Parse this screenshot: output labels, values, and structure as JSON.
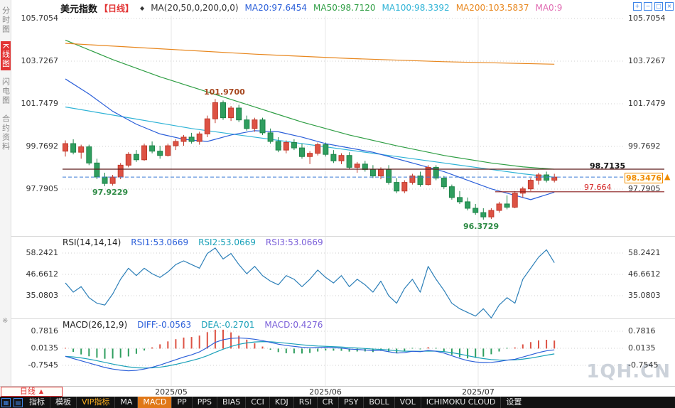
{
  "header": {
    "symbol": "美元指数",
    "period_tag": "【日线】",
    "ma_label": "MA(20,50,0,200,0,0)",
    "ma_values": [
      {
        "text": "MA20:97.6454",
        "color": "#2b5fd9"
      },
      {
        "text": "MA50:98.7120",
        "color": "#2f9e44"
      },
      {
        "text": "MA100:98.3392",
        "color": "#2fb3d6"
      },
      {
        "text": "MA200:103.5837",
        "color": "#e8871e"
      },
      {
        "text": "MA0:9",
        "color": "#e06bb2"
      }
    ]
  },
  "icons": {
    "marker": "◆",
    "pane_settings": "※",
    "arrow_up": "▲"
  },
  "top_icons": [
    {
      "name": "zoom-in-icon",
      "glyph": "+"
    },
    {
      "name": "zoom-out-icon",
      "glyph": "−"
    },
    {
      "name": "pane-layout-icon",
      "glyph": "□"
    },
    {
      "name": "close-pane-icon",
      "glyph": "×"
    }
  ],
  "sidebar": {
    "items": [
      {
        "name": "sidebar-item-timeshare",
        "label": "分时图",
        "active": false
      },
      {
        "name": "sidebar-item-kline",
        "label": "K线图",
        "active": true
      },
      {
        "name": "sidebar-item-lightning",
        "label": "闪电图",
        "active": false
      },
      {
        "name": "sidebar-item-contract-info",
        "label": "合约资料",
        "active": false
      }
    ]
  },
  "axes": {
    "main_price_labels": [
      "105.7054",
      "103.7267",
      "101.7479",
      "99.7692",
      "97.7905"
    ],
    "rsi_labels": [
      "58.2421",
      "46.6612",
      "35.0803"
    ],
    "macd_labels": [
      "0.7816",
      "0.0135",
      "-0.7545"
    ],
    "x_labels": [
      "2025/05",
      "2025/06",
      "2025/07"
    ]
  },
  "rsi_header": {
    "title": "RSI(14,14,14)",
    "values": [
      {
        "text": "RSI1:53.0669",
        "color": "#2b5fd9"
      },
      {
        "text": "RSI2:53.0669",
        "color": "#19a0b8"
      },
      {
        "text": "RSI3:53.0669",
        "color": "#7a5fd9"
      }
    ]
  },
  "macd_header": {
    "title": "MACD(26,12,9)",
    "values": [
      {
        "text": "DIFF:-0.0563",
        "color": "#2b5fd9"
      },
      {
        "text": "DEA:-0.2701",
        "color": "#19a0b8"
      },
      {
        "text": "MACD:0.4276",
        "color": "#7a5fd9"
      }
    ]
  },
  "annotations": {
    "high": "101.9700",
    "low_early": "97.9229",
    "low_main": "96.3729",
    "resistance": "98.7135",
    "support": "97.664",
    "last_price": "98.3476"
  },
  "period_selector": {
    "label": "日线"
  },
  "toolbar": {
    "icons": [
      {
        "name": "indicator-grid-icon",
        "glyph": "▦"
      },
      {
        "name": "indicator-panel-icon",
        "glyph": "▤"
      }
    ],
    "items": [
      {
        "name": "toolbar-item-indicators",
        "label": "指标"
      },
      {
        "name": "toolbar-item-templates",
        "label": "模板"
      },
      {
        "name": "toolbar-item-vip",
        "label": "VIP指标",
        "vip": true
      },
      {
        "name": "toolbar-item-ma",
        "label": "MA"
      },
      {
        "name": "toolbar-item-macd",
        "label": "MACD",
        "active": true
      },
      {
        "name": "toolbar-item-pp",
        "label": "PP"
      },
      {
        "name": "toolbar-item-pps",
        "label": "PPS"
      },
      {
        "name": "toolbar-item-bias",
        "label": "BIAS"
      },
      {
        "name": "toolbar-item-cci",
        "label": "CCI"
      },
      {
        "name": "toolbar-item-kdj",
        "label": "KDJ"
      },
      {
        "name": "toolbar-item-rsi",
        "label": "RSI"
      },
      {
        "name": "toolbar-item-cr",
        "label": "CR"
      },
      {
        "name": "toolbar-item-psy",
        "label": "PSY"
      },
      {
        "name": "toolbar-item-boll",
        "label": "BOLL"
      },
      {
        "name": "toolbar-item-vol",
        "label": "VOL"
      },
      {
        "name": "toolbar-item-ichimoku",
        "label": "ICHIMOKU CLOUD"
      },
      {
        "name": "toolbar-item-settings",
        "label": "设置"
      }
    ]
  },
  "watermark": "1QH.CN",
  "colors": {
    "up": "#c0392b",
    "up_fill": "#dd5244",
    "down": "#1e8449",
    "down_fill": "#2f9e5f",
    "ma20": "#2b5fd9",
    "ma50": "#2f9e44",
    "ma100": "#2fb3d6",
    "ma200": "#e8871e",
    "rsi_line": "#2c7fb8",
    "diff_line": "#2b5fd9",
    "dea_line": "#19a0b8",
    "last_price_line": "#3a7bd5",
    "resistance_line": "#5c1a1a",
    "support_line": "#8a1f1f",
    "accent_red": "#e23333",
    "accent_orange": "#f08c00"
  },
  "chart_data": {
    "type": "candlestick",
    "title": "美元指数 日线",
    "x_labels": [
      "2025/05",
      "2025/06",
      "2025/07"
    ],
    "main": {
      "price_gridlines": [
        105.7054,
        103.7267,
        101.7479,
        99.7692,
        97.7905
      ],
      "levels": {
        "resistance": 98.7135,
        "support": 97.664,
        "last_price": 98.3476
      },
      "high_annotation": 101.97,
      "low_annotation_early": 97.9229,
      "low_annotation_main": 96.3729,
      "candles": [
        [
          99.55,
          100.05,
          99.3,
          99.9
        ],
        [
          99.9,
          100.1,
          99.4,
          99.5
        ],
        [
          99.5,
          99.85,
          99.2,
          99.75
        ],
        [
          99.75,
          99.85,
          98.9,
          99.0
        ],
        [
          99.0,
          99.2,
          98.25,
          98.35
        ],
        [
          98.35,
          98.55,
          97.9229,
          98.05
        ],
        [
          98.05,
          98.45,
          97.95,
          98.35
        ],
        [
          98.35,
          99.0,
          98.25,
          98.9
        ],
        [
          98.9,
          99.5,
          98.8,
          99.4
        ],
        [
          99.4,
          99.6,
          99.05,
          99.15
        ],
        [
          99.15,
          99.9,
          99.1,
          99.8
        ],
        [
          99.8,
          100.0,
          99.45,
          99.55
        ],
        [
          99.55,
          99.8,
          99.2,
          99.35
        ],
        [
          99.35,
          99.9,
          99.3,
          99.8
        ],
        [
          99.8,
          100.1,
          99.6,
          100.0
        ],
        [
          100.0,
          100.3,
          99.8,
          100.2
        ],
        [
          100.2,
          100.4,
          99.9,
          100.0
        ],
        [
          100.0,
          100.45,
          99.85,
          100.35
        ],
        [
          100.35,
          101.2,
          100.2,
          101.05
        ],
        [
          101.05,
          101.97,
          100.85,
          101.8
        ],
        [
          101.8,
          101.9,
          101.0,
          101.1
        ],
        [
          101.1,
          101.65,
          100.95,
          101.55
        ],
        [
          101.55,
          101.7,
          100.9,
          101.0
        ],
        [
          101.0,
          101.2,
          100.5,
          100.6
        ],
        [
          100.6,
          101.1,
          100.45,
          101.0
        ],
        [
          101.0,
          101.1,
          100.3,
          100.4
        ],
        [
          100.4,
          100.6,
          99.9,
          100.0
        ],
        [
          100.0,
          100.2,
          99.5,
          99.6
        ],
        [
          99.6,
          100.05,
          99.45,
          99.95
        ],
        [
          99.95,
          100.1,
          99.6,
          99.7
        ],
        [
          99.7,
          99.9,
          99.2,
          99.3
        ],
        [
          99.3,
          99.55,
          98.95,
          99.45
        ],
        [
          99.45,
          99.95,
          99.35,
          99.85
        ],
        [
          99.85,
          99.95,
          99.3,
          99.4
        ],
        [
          99.4,
          99.6,
          99.0,
          99.1
        ],
        [
          99.1,
          99.45,
          98.95,
          99.35
        ],
        [
          99.35,
          99.5,
          98.7,
          98.8
        ],
        [
          98.8,
          99.05,
          98.55,
          98.95
        ],
        [
          98.95,
          99.1,
          98.6,
          98.7
        ],
        [
          98.7,
          98.9,
          98.3,
          98.4
        ],
        [
          98.4,
          98.8,
          98.25,
          98.7
        ],
        [
          98.7,
          98.9,
          98.0,
          98.1
        ],
        [
          98.1,
          98.3,
          97.6,
          97.7
        ],
        [
          97.7,
          98.2,
          97.6,
          98.1
        ],
        [
          98.1,
          98.5,
          98.0,
          98.4
        ],
        [
          98.4,
          98.6,
          97.9,
          98.0
        ],
        [
          98.0,
          98.9,
          97.95,
          98.8
        ],
        [
          98.8,
          98.9,
          98.2,
          98.3
        ],
        [
          98.3,
          98.4,
          97.8,
          97.9
        ],
        [
          97.9,
          98.0,
          97.3,
          97.4
        ],
        [
          97.4,
          97.7,
          97.1,
          97.2
        ],
        [
          97.2,
          97.4,
          96.8,
          96.9
        ],
        [
          96.9,
          97.1,
          96.6,
          96.7
        ],
        [
          96.7,
          96.9,
          96.3729,
          96.5
        ],
        [
          96.5,
          96.9,
          96.4,
          96.8
        ],
        [
          96.8,
          97.2,
          96.7,
          97.1
        ],
        [
          97.1,
          97.5,
          96.85,
          96.95
        ],
        [
          96.95,
          97.7,
          96.9,
          97.6
        ],
        [
          97.6,
          97.9,
          97.4,
          97.8
        ],
        [
          97.8,
          98.3,
          97.7,
          98.2
        ],
        [
          98.2,
          98.55,
          98.0,
          98.45
        ],
        [
          98.45,
          98.6,
          98.1,
          98.2
        ],
        [
          98.2,
          98.5,
          98.1,
          98.3476
        ]
      ],
      "overlays": {
        "ma20": {
          "points": [
            [
              0,
              102.9
            ],
            [
              3,
              102.2
            ],
            [
              6,
              101.4
            ],
            [
              9,
              100.8
            ],
            [
              12,
              100.35
            ],
            [
              15,
              100.1
            ],
            [
              18,
              100.0
            ],
            [
              21,
              100.3
            ],
            [
              24,
              100.5
            ],
            [
              27,
              100.45
            ],
            [
              30,
              100.2
            ],
            [
              33,
              99.9
            ],
            [
              36,
              99.7
            ],
            [
              39,
              99.5
            ],
            [
              42,
              99.2
            ],
            [
              45,
              98.9
            ],
            [
              48,
              98.6
            ],
            [
              51,
              98.2
            ],
            [
              54,
              97.8
            ],
            [
              57,
              97.5
            ],
            [
              59,
              97.3
            ],
            [
              62,
              97.6454
            ]
          ]
        },
        "ma50": {
          "points": [
            [
              0,
              104.7
            ],
            [
              6,
              103.8
            ],
            [
              12,
              103.0
            ],
            [
              18,
              102.3
            ],
            [
              24,
              101.6
            ],
            [
              30,
              100.9
            ],
            [
              36,
              100.3
            ],
            [
              42,
              99.8
            ],
            [
              48,
              99.35
            ],
            [
              54,
              99.0
            ],
            [
              58,
              98.82
            ],
            [
              62,
              98.712
            ]
          ]
        },
        "ma100": {
          "points": [
            [
              0,
              101.6
            ],
            [
              8,
              101.1
            ],
            [
              16,
              100.6
            ],
            [
              24,
              100.2
            ],
            [
              32,
              99.8
            ],
            [
              40,
              99.4
            ],
            [
              48,
              99.0
            ],
            [
              54,
              98.7
            ],
            [
              58,
              98.5
            ],
            [
              62,
              98.3392
            ]
          ]
        },
        "ma200": {
          "points": [
            [
              0,
              104.55
            ],
            [
              12,
              104.3
            ],
            [
              24,
              104.05
            ],
            [
              36,
              103.85
            ],
            [
              48,
              103.7
            ],
            [
              62,
              103.5837
            ]
          ]
        }
      }
    },
    "rsi": {
      "gridlines": [
        58.2421,
        46.6612,
        35.0803
      ],
      "values": [
        42,
        37,
        40,
        34,
        31,
        30,
        36,
        44,
        50,
        46,
        50,
        47,
        45,
        48,
        52,
        54,
        52,
        50,
        58,
        61,
        55,
        58,
        52,
        47,
        51,
        46,
        43,
        41,
        46,
        44,
        40,
        44,
        49,
        45,
        42,
        46,
        40,
        44,
        41,
        37,
        43,
        35,
        31,
        39,
        44,
        37,
        51,
        44,
        38,
        31,
        28,
        26,
        24,
        28,
        23,
        30,
        34,
        31,
        44,
        50,
        56,
        60,
        53
      ]
    },
    "macd": {
      "gridlines": [
        0.7816,
        0.0135,
        -0.7545
      ],
      "diff": [
        -0.35,
        -0.45,
        -0.55,
        -0.65,
        -0.75,
        -0.85,
        -0.92,
        -0.97,
        -1.0,
        -0.98,
        -0.92,
        -0.84,
        -0.74,
        -0.62,
        -0.5,
        -0.38,
        -0.28,
        -0.15,
        0.05,
        0.28,
        0.4,
        0.46,
        0.48,
        0.46,
        0.42,
        0.36,
        0.28,
        0.2,
        0.14,
        0.1,
        0.06,
        0.04,
        0.05,
        0.06,
        0.04,
        0.02,
        -0.02,
        -0.04,
        -0.06,
        -0.1,
        -0.08,
        -0.14,
        -0.2,
        -0.18,
        -0.12,
        -0.14,
        -0.08,
        -0.12,
        -0.2,
        -0.32,
        -0.44,
        -0.54,
        -0.6,
        -0.63,
        -0.62,
        -0.58,
        -0.52,
        -0.48,
        -0.38,
        -0.28,
        -0.18,
        -0.1,
        -0.0563
      ]
    }
  }
}
